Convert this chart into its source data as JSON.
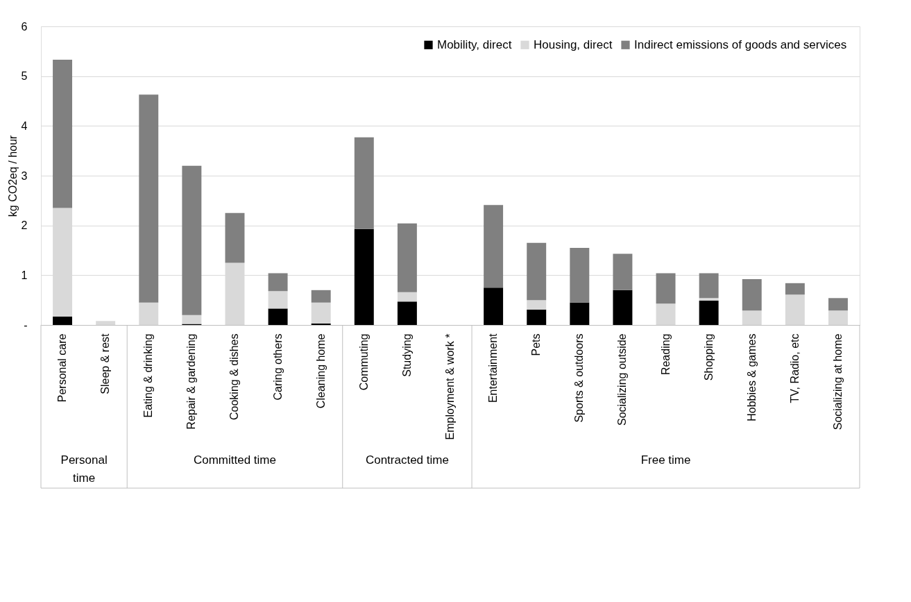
{
  "chart_data": {
    "type": "bar",
    "stacked": true,
    "ylabel": "kg CO2eq / hour",
    "categories": [
      "Personal care",
      "Sleep & rest",
      "Eating & drinking",
      "Repair & gardening",
      "Cooking & dishes",
      "Caring others",
      "Cleaning home",
      "Commuting",
      "Studying",
      "Employment & work *",
      "Entertainment",
      "Pets",
      "Sports & outdoors",
      "Socializing outside",
      "Reading",
      "Shopping",
      "Hobbies & games",
      "TV, Radio, etc",
      "Socializing at home"
    ],
    "series": [
      {
        "name": "Mobility, direct",
        "color": "#000000",
        "values": [
          0.17,
          0,
          0,
          0.02,
          0,
          0.33,
          0.03,
          1.93,
          0.47,
          null,
          0.75,
          0.31,
          0.45,
          0.7,
          0,
          0.49,
          0,
          0,
          0
        ]
      },
      {
        "name": "Housing, direct",
        "color": "#d9d9d9",
        "values": [
          2.18,
          0.08,
          0.45,
          0.18,
          1.25,
          0.35,
          0.42,
          0,
          0.19,
          null,
          0,
          0.19,
          0,
          0,
          0.43,
          0.05,
          0.29,
          0.61,
          0.29
        ]
      },
      {
        "name": "Indirect emissions of goods and services",
        "color": "#808080",
        "values": [
          2.98,
          0,
          4.18,
          3.0,
          1.0,
          0.36,
          0.25,
          1.84,
          1.38,
          null,
          1.66,
          1.15,
          1.1,
          0.73,
          0.61,
          0.5,
          0.63,
          0.23,
          0.25
        ]
      }
    ],
    "ylim": [
      0,
      6
    ],
    "yticks": [
      {
        "value": 0,
        "label": "-"
      },
      1,
      2,
      3,
      4,
      5,
      6
    ],
    "grid": "y",
    "legend": "top right",
    "annotations": [
      "Personal\ntime",
      "Committed time",
      "Contracted time",
      "Free time"
    ]
  }
}
